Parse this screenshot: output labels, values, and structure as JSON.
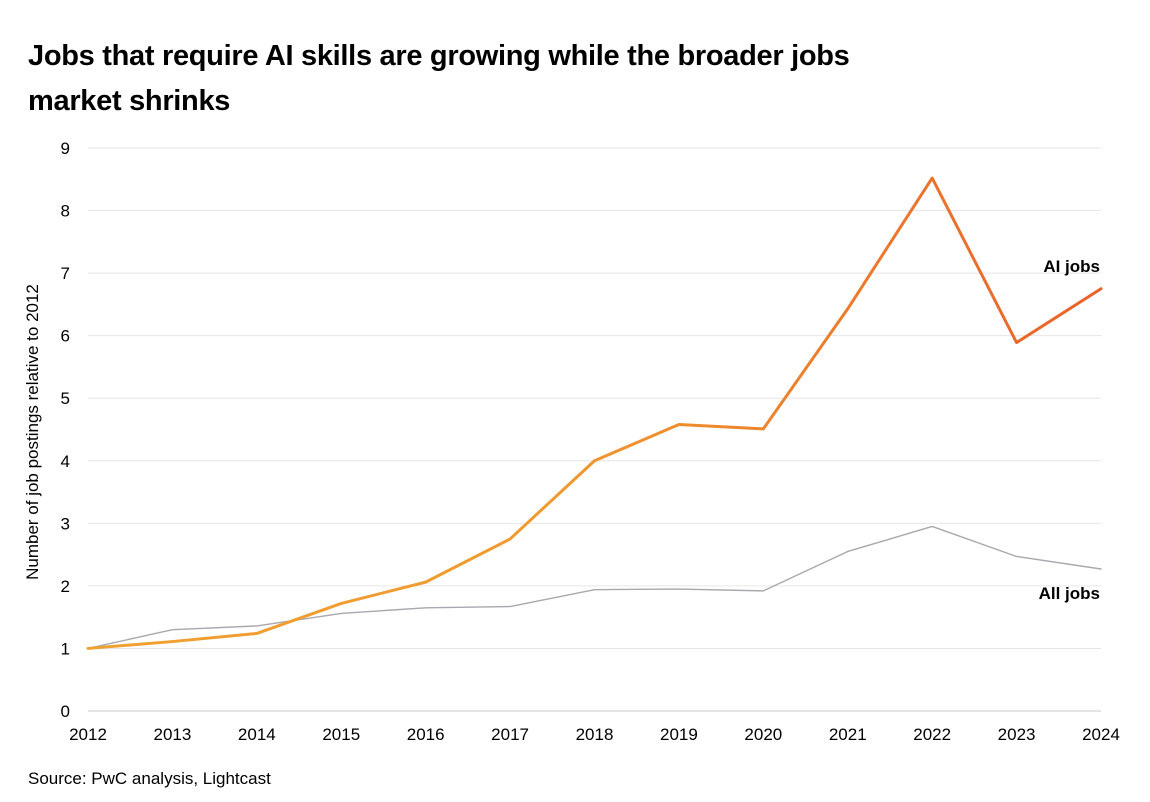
{
  "chart_data": {
    "type": "line",
    "title": "Jobs that require AI skills are growing while the broader jobs market shrinks",
    "source": "Source: PwC analysis, Lightcast",
    "ylabel": "Number of job postings relative to 2012",
    "xlabel": "",
    "x": [
      "2012",
      "2013",
      "2014",
      "2015",
      "2016",
      "2017",
      "2018",
      "2019",
      "2020",
      "2021",
      "2022",
      "2023",
      "2024"
    ],
    "ylim": [
      0,
      9
    ],
    "yticks": [
      "0",
      "1",
      "2",
      "3",
      "4",
      "5",
      "6",
      "7",
      "8",
      "9"
    ],
    "grid": true,
    "series": [
      {
        "name": "AI jobs",
        "color_start": "#F0A030",
        "color_end": "#E8622A",
        "values": [
          1.0,
          1.11,
          1.24,
          1.72,
          2.06,
          2.75,
          4.0,
          4.58,
          4.51,
          6.43,
          8.52,
          5.89,
          6.75
        ]
      },
      {
        "name": "All jobs",
        "color": "#A8A8AE",
        "values": [
          1.0,
          1.3,
          1.36,
          1.56,
          1.65,
          1.67,
          1.94,
          1.95,
          1.92,
          2.55,
          2.95,
          2.47,
          2.27
        ]
      }
    ]
  }
}
